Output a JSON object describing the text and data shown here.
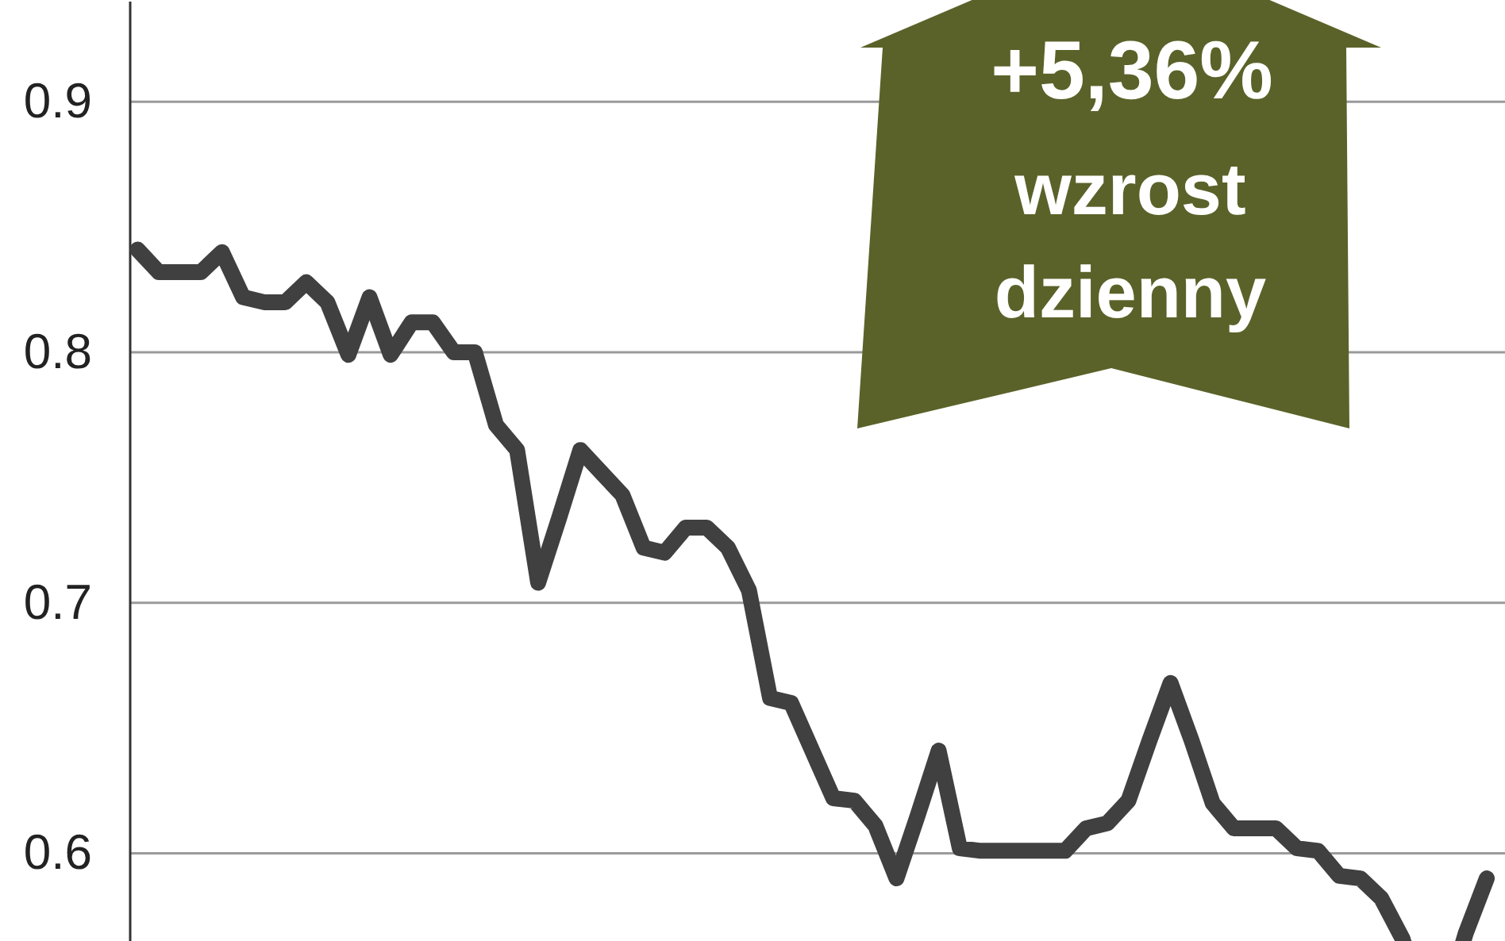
{
  "chart_data": {
    "type": "line",
    "categories": [
      null,
      null,
      null,
      null,
      null,
      null,
      null,
      null,
      null,
      null,
      null,
      null,
      null,
      null,
      null,
      null,
      null,
      null,
      null,
      null,
      null,
      null,
      null,
      null,
      null,
      null,
      null,
      null,
      null,
      null,
      null,
      null,
      null,
      null,
      null,
      null,
      null,
      null,
      null,
      null,
      null,
      null,
      null,
      null,
      null,
      null,
      null,
      null,
      null,
      null,
      null,
      null,
      null,
      null,
      null,
      null,
      null,
      null,
      null,
      null,
      null,
      null,
      null,
      null,
      null
    ],
    "series": [
      {
        "color": "#404040",
        "values": [
          0.841,
          0.832,
          0.832,
          0.832,
          0.84,
          0.822,
          0.82,
          0.82,
          0.828,
          0.82,
          0.799,
          0.822,
          0.799,
          0.812,
          0.812,
          0.8,
          0.8,
          0.771,
          0.761,
          0.708,
          0.734,
          0.761,
          0.752,
          0.743,
          0.722,
          0.72,
          0.73,
          0.73,
          0.722,
          0.705,
          0.662,
          0.66,
          0.641,
          0.622,
          0.621,
          0.611,
          0.59,
          0.615,
          0.641,
          0.602,
          0.601,
          0.601,
          0.601,
          0.601,
          0.601,
          0.61,
          0.612,
          0.621,
          0.645,
          0.668,
          0.645,
          0.62,
          0.61,
          0.61,
          0.61,
          0.602,
          0.601,
          0.591,
          0.59,
          0.582,
          0.566,
          null,
          null,
          0.568,
          0.59
        ]
      }
    ],
    "ylim": [
      0.565,
      0.94
    ],
    "yticks": [
      0.6,
      0.7,
      0.8,
      0.9
    ],
    "grid": "y",
    "marker": "none",
    "line_style": "solid",
    "annotations": [
      "+5,36%",
      "wzrost",
      "dzienny"
    ]
  }
}
